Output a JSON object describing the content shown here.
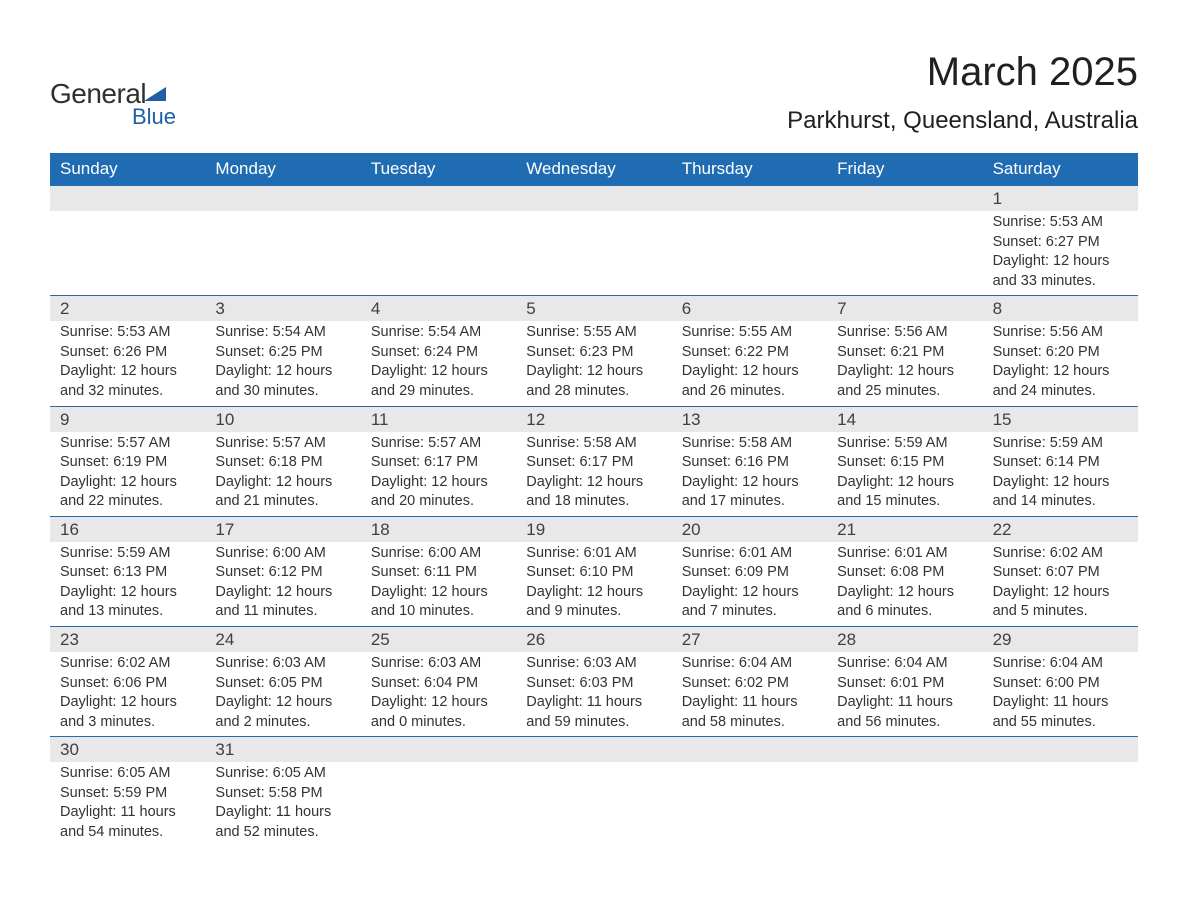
{
  "logo": {
    "word1": "General",
    "word2": "Blue"
  },
  "title": "March 2025",
  "location": "Parkhurst, Queensland, Australia",
  "colors": {
    "header_bg": "#1f6cb3",
    "header_text": "#ffffff",
    "daynum_bg": "#e8e8e8",
    "text": "#333333",
    "logo_accent": "#1f5fa8"
  },
  "weekdays": [
    "Sunday",
    "Monday",
    "Tuesday",
    "Wednesday",
    "Thursday",
    "Friday",
    "Saturday"
  ],
  "weeks": [
    [
      null,
      null,
      null,
      null,
      null,
      null,
      {
        "n": "1",
        "sr": "Sunrise: 5:53 AM",
        "ss": "Sunset: 6:27 PM",
        "d1": "Daylight: 12 hours",
        "d2": "and 33 minutes."
      }
    ],
    [
      {
        "n": "2",
        "sr": "Sunrise: 5:53 AM",
        "ss": "Sunset: 6:26 PM",
        "d1": "Daylight: 12 hours",
        "d2": "and 32 minutes."
      },
      {
        "n": "3",
        "sr": "Sunrise: 5:54 AM",
        "ss": "Sunset: 6:25 PM",
        "d1": "Daylight: 12 hours",
        "d2": "and 30 minutes."
      },
      {
        "n": "4",
        "sr": "Sunrise: 5:54 AM",
        "ss": "Sunset: 6:24 PM",
        "d1": "Daylight: 12 hours",
        "d2": "and 29 minutes."
      },
      {
        "n": "5",
        "sr": "Sunrise: 5:55 AM",
        "ss": "Sunset: 6:23 PM",
        "d1": "Daylight: 12 hours",
        "d2": "and 28 minutes."
      },
      {
        "n": "6",
        "sr": "Sunrise: 5:55 AM",
        "ss": "Sunset: 6:22 PM",
        "d1": "Daylight: 12 hours",
        "d2": "and 26 minutes."
      },
      {
        "n": "7",
        "sr": "Sunrise: 5:56 AM",
        "ss": "Sunset: 6:21 PM",
        "d1": "Daylight: 12 hours",
        "d2": "and 25 minutes."
      },
      {
        "n": "8",
        "sr": "Sunrise: 5:56 AM",
        "ss": "Sunset: 6:20 PM",
        "d1": "Daylight: 12 hours",
        "d2": "and 24 minutes."
      }
    ],
    [
      {
        "n": "9",
        "sr": "Sunrise: 5:57 AM",
        "ss": "Sunset: 6:19 PM",
        "d1": "Daylight: 12 hours",
        "d2": "and 22 minutes."
      },
      {
        "n": "10",
        "sr": "Sunrise: 5:57 AM",
        "ss": "Sunset: 6:18 PM",
        "d1": "Daylight: 12 hours",
        "d2": "and 21 minutes."
      },
      {
        "n": "11",
        "sr": "Sunrise: 5:57 AM",
        "ss": "Sunset: 6:17 PM",
        "d1": "Daylight: 12 hours",
        "d2": "and 20 minutes."
      },
      {
        "n": "12",
        "sr": "Sunrise: 5:58 AM",
        "ss": "Sunset: 6:17 PM",
        "d1": "Daylight: 12 hours",
        "d2": "and 18 minutes."
      },
      {
        "n": "13",
        "sr": "Sunrise: 5:58 AM",
        "ss": "Sunset: 6:16 PM",
        "d1": "Daylight: 12 hours",
        "d2": "and 17 minutes."
      },
      {
        "n": "14",
        "sr": "Sunrise: 5:59 AM",
        "ss": "Sunset: 6:15 PM",
        "d1": "Daylight: 12 hours",
        "d2": "and 15 minutes."
      },
      {
        "n": "15",
        "sr": "Sunrise: 5:59 AM",
        "ss": "Sunset: 6:14 PM",
        "d1": "Daylight: 12 hours",
        "d2": "and 14 minutes."
      }
    ],
    [
      {
        "n": "16",
        "sr": "Sunrise: 5:59 AM",
        "ss": "Sunset: 6:13 PM",
        "d1": "Daylight: 12 hours",
        "d2": "and 13 minutes."
      },
      {
        "n": "17",
        "sr": "Sunrise: 6:00 AM",
        "ss": "Sunset: 6:12 PM",
        "d1": "Daylight: 12 hours",
        "d2": "and 11 minutes."
      },
      {
        "n": "18",
        "sr": "Sunrise: 6:00 AM",
        "ss": "Sunset: 6:11 PM",
        "d1": "Daylight: 12 hours",
        "d2": "and 10 minutes."
      },
      {
        "n": "19",
        "sr": "Sunrise: 6:01 AM",
        "ss": "Sunset: 6:10 PM",
        "d1": "Daylight: 12 hours",
        "d2": "and 9 minutes."
      },
      {
        "n": "20",
        "sr": "Sunrise: 6:01 AM",
        "ss": "Sunset: 6:09 PM",
        "d1": "Daylight: 12 hours",
        "d2": "and 7 minutes."
      },
      {
        "n": "21",
        "sr": "Sunrise: 6:01 AM",
        "ss": "Sunset: 6:08 PM",
        "d1": "Daylight: 12 hours",
        "d2": "and 6 minutes."
      },
      {
        "n": "22",
        "sr": "Sunrise: 6:02 AM",
        "ss": "Sunset: 6:07 PM",
        "d1": "Daylight: 12 hours",
        "d2": "and 5 minutes."
      }
    ],
    [
      {
        "n": "23",
        "sr": "Sunrise: 6:02 AM",
        "ss": "Sunset: 6:06 PM",
        "d1": "Daylight: 12 hours",
        "d2": "and 3 minutes."
      },
      {
        "n": "24",
        "sr": "Sunrise: 6:03 AM",
        "ss": "Sunset: 6:05 PM",
        "d1": "Daylight: 12 hours",
        "d2": "and 2 minutes."
      },
      {
        "n": "25",
        "sr": "Sunrise: 6:03 AM",
        "ss": "Sunset: 6:04 PM",
        "d1": "Daylight: 12 hours",
        "d2": "and 0 minutes."
      },
      {
        "n": "26",
        "sr": "Sunrise: 6:03 AM",
        "ss": "Sunset: 6:03 PM",
        "d1": "Daylight: 11 hours",
        "d2": "and 59 minutes."
      },
      {
        "n": "27",
        "sr": "Sunrise: 6:04 AM",
        "ss": "Sunset: 6:02 PM",
        "d1": "Daylight: 11 hours",
        "d2": "and 58 minutes."
      },
      {
        "n": "28",
        "sr": "Sunrise: 6:04 AM",
        "ss": "Sunset: 6:01 PM",
        "d1": "Daylight: 11 hours",
        "d2": "and 56 minutes."
      },
      {
        "n": "29",
        "sr": "Sunrise: 6:04 AM",
        "ss": "Sunset: 6:00 PM",
        "d1": "Daylight: 11 hours",
        "d2": "and 55 minutes."
      }
    ],
    [
      {
        "n": "30",
        "sr": "Sunrise: 6:05 AM",
        "ss": "Sunset: 5:59 PM",
        "d1": "Daylight: 11 hours",
        "d2": "and 54 minutes."
      },
      {
        "n": "31",
        "sr": "Sunrise: 6:05 AM",
        "ss": "Sunset: 5:58 PM",
        "d1": "Daylight: 11 hours",
        "d2": "and 52 minutes."
      },
      null,
      null,
      null,
      null,
      null
    ]
  ]
}
